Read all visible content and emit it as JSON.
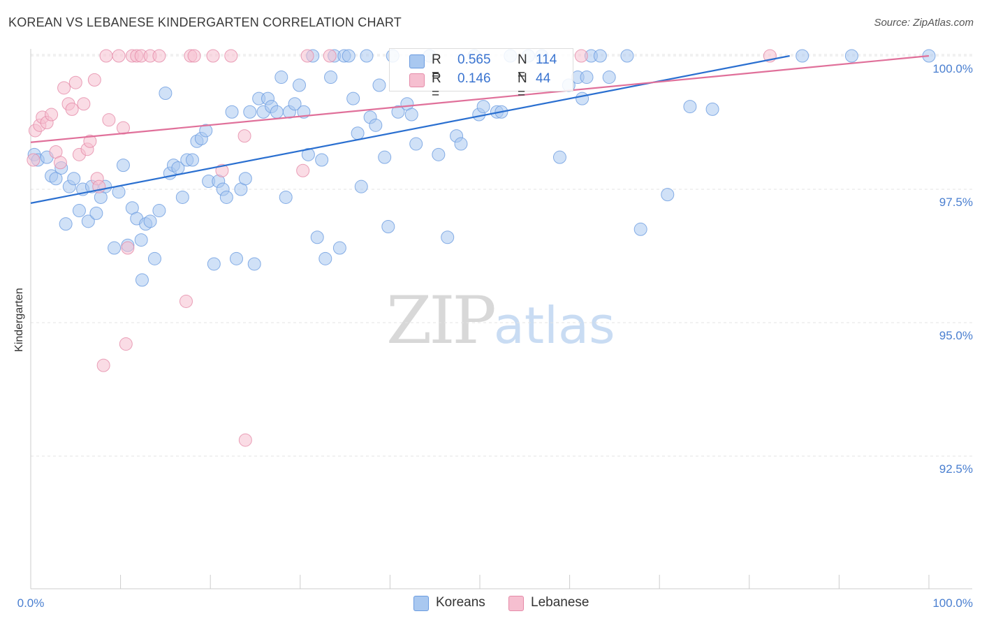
{
  "title": "KOREAN VS LEBANESE KINDERGARTEN CORRELATION CHART",
  "source": "Source: ZipAtlas.com",
  "watermark": {
    "zip": "ZIP",
    "atlas": "atlas"
  },
  "legend": {
    "rows": [
      {
        "r_label": "R =",
        "r_value": "0.565",
        "n_label": "N =",
        "n_value": "114",
        "color": "#a9c8f0",
        "border": "#6a9be0"
      },
      {
        "r_label": "R =",
        "r_value": "0.146",
        "n_label": "N =",
        "n_value": "44",
        "color": "#f6bfd0",
        "border": "#e58aa8"
      }
    ]
  },
  "bottom_legend": [
    {
      "label": "Koreans",
      "color": "#a9c8f0",
      "border": "#6a9be0"
    },
    {
      "label": "Lebanese",
      "color": "#f6bfd0",
      "border": "#e58aa8"
    }
  ],
  "chart_data": {
    "type": "scatter",
    "title": "KOREAN VS LEBANESE KINDERGARTEN CORRELATION CHART",
    "xlabel": "",
    "ylabel": "Kindergarten",
    "xlim": [
      0,
      100
    ],
    "ylim": [
      90.0,
      100.4
    ],
    "x_tick_labels": [
      "0.0%",
      "100.0%"
    ],
    "y_ticks": [
      92.5,
      95.0,
      97.5,
      100.0
    ],
    "y_tick_labels": [
      "92.5%",
      "95.0%",
      "97.5%",
      "100.0%"
    ],
    "grid": true,
    "series": [
      {
        "name": "Koreans",
        "color": "#6a9be0",
        "fill": "#a9c8f0",
        "trend": {
          "x": [
            0,
            84.5
          ],
          "y": [
            97.24,
            100.0
          ],
          "color": "#2a6fd0"
        },
        "points": [
          [
            0.4,
            98.15
          ],
          [
            0.8,
            98.05
          ],
          [
            1.8,
            98.1
          ],
          [
            2.3,
            97.75
          ],
          [
            2.8,
            97.7
          ],
          [
            3.4,
            97.9
          ],
          [
            3.9,
            96.85
          ],
          [
            4.3,
            97.55
          ],
          [
            4.8,
            97.7
          ],
          [
            5.4,
            97.1
          ],
          [
            5.8,
            97.5
          ],
          [
            6.4,
            96.9
          ],
          [
            6.8,
            97.55
          ],
          [
            7.3,
            97.05
          ],
          [
            7.8,
            97.35
          ],
          [
            8.3,
            97.55
          ],
          [
            9.3,
            96.4
          ],
          [
            9.8,
            97.45
          ],
          [
            10.3,
            97.95
          ],
          [
            10.8,
            96.45
          ],
          [
            11.3,
            97.15
          ],
          [
            11.8,
            96.95
          ],
          [
            12.3,
            96.55
          ],
          [
            12.4,
            95.8
          ],
          [
            12.8,
            96.85
          ],
          [
            13.3,
            96.9
          ],
          [
            13.8,
            96.2
          ],
          [
            14.3,
            97.1
          ],
          [
            15.0,
            99.3
          ],
          [
            15.5,
            97.8
          ],
          [
            15.9,
            97.95
          ],
          [
            16.4,
            97.9
          ],
          [
            16.9,
            97.35
          ],
          [
            17.4,
            98.05
          ],
          [
            18.0,
            98.05
          ],
          [
            18.5,
            98.4
          ],
          [
            19.0,
            98.45
          ],
          [
            19.5,
            98.6
          ],
          [
            19.8,
            97.65
          ],
          [
            20.4,
            96.1
          ],
          [
            20.9,
            97.65
          ],
          [
            21.4,
            97.5
          ],
          [
            21.8,
            97.35
          ],
          [
            22.4,
            98.95
          ],
          [
            22.9,
            96.2
          ],
          [
            23.4,
            97.5
          ],
          [
            23.9,
            97.7
          ],
          [
            24.4,
            98.95
          ],
          [
            24.9,
            96.1
          ],
          [
            25.4,
            99.2
          ],
          [
            25.9,
            98.95
          ],
          [
            26.4,
            99.2
          ],
          [
            26.8,
            99.05
          ],
          [
            27.4,
            98.95
          ],
          [
            27.9,
            99.6
          ],
          [
            28.4,
            97.35
          ],
          [
            28.8,
            98.95
          ],
          [
            29.4,
            99.1
          ],
          [
            29.9,
            99.45
          ],
          [
            30.4,
            98.95
          ],
          [
            30.9,
            98.15
          ],
          [
            31.4,
            100.0
          ],
          [
            31.9,
            96.6
          ],
          [
            32.4,
            98.05
          ],
          [
            32.8,
            96.2
          ],
          [
            33.4,
            99.6
          ],
          [
            33.8,
            100.0
          ],
          [
            34.4,
            96.4
          ],
          [
            34.9,
            100.0
          ],
          [
            35.4,
            100.0
          ],
          [
            35.9,
            99.2
          ],
          [
            36.4,
            98.55
          ],
          [
            36.8,
            97.55
          ],
          [
            37.4,
            100.0
          ],
          [
            37.8,
            98.85
          ],
          [
            38.4,
            98.7
          ],
          [
            38.8,
            99.45
          ],
          [
            39.4,
            98.1
          ],
          [
            39.8,
            96.8
          ],
          [
            40.3,
            100.0
          ],
          [
            40.9,
            98.95
          ],
          [
            41.9,
            99.1
          ],
          [
            42.4,
            98.9
          ],
          [
            42.9,
            98.35
          ],
          [
            44.4,
            100.0
          ],
          [
            45.4,
            98.15
          ],
          [
            46.4,
            96.6
          ],
          [
            47.4,
            98.5
          ],
          [
            47.9,
            98.35
          ],
          [
            49.4,
            100.0
          ],
          [
            49.9,
            98.9
          ],
          [
            50.4,
            99.05
          ],
          [
            51.9,
            98.95
          ],
          [
            52.4,
            98.95
          ],
          [
            53.4,
            100.0
          ],
          [
            55.4,
            100.0
          ],
          [
            56.9,
            100.0
          ],
          [
            58.9,
            98.1
          ],
          [
            59.9,
            99.45
          ],
          [
            60.9,
            99.6
          ],
          [
            61.4,
            99.2
          ],
          [
            61.9,
            99.6
          ],
          [
            62.4,
            100.0
          ],
          [
            63.4,
            100.0
          ],
          [
            64.4,
            99.6
          ],
          [
            66.4,
            100.0
          ],
          [
            67.9,
            96.75
          ],
          [
            70.9,
            97.4
          ],
          [
            73.4,
            99.05
          ],
          [
            75.9,
            99.0
          ],
          [
            85.9,
            100.0
          ],
          [
            91.4,
            100.0
          ],
          [
            100,
            100.0
          ]
        ]
      },
      {
        "name": "Lebanese",
        "color": "#e58aa8",
        "fill": "#f6bfd0",
        "trend": {
          "x": [
            0,
            100
          ],
          "y": [
            98.38,
            100.0
          ],
          "color": "#e0709a"
        },
        "points": [
          [
            0.3,
            98.05
          ],
          [
            0.5,
            98.6
          ],
          [
            1.0,
            98.7
          ],
          [
            1.3,
            98.85
          ],
          [
            1.8,
            98.75
          ],
          [
            2.3,
            98.9
          ],
          [
            2.8,
            98.2
          ],
          [
            3.3,
            98.0
          ],
          [
            3.7,
            99.4
          ],
          [
            4.2,
            99.1
          ],
          [
            4.6,
            99.0
          ],
          [
            5.0,
            99.5
          ],
          [
            5.4,
            98.15
          ],
          [
            5.9,
            99.1
          ],
          [
            6.3,
            98.25
          ],
          [
            6.6,
            98.4
          ],
          [
            7.1,
            99.55
          ],
          [
            7.4,
            97.7
          ],
          [
            7.6,
            97.55
          ],
          [
            8.1,
            94.2
          ],
          [
            8.4,
            100.0
          ],
          [
            8.7,
            98.8
          ],
          [
            9.8,
            100.0
          ],
          [
            10.3,
            98.65
          ],
          [
            10.6,
            94.6
          ],
          [
            10.8,
            96.4
          ],
          [
            11.3,
            100.0
          ],
          [
            11.8,
            100.0
          ],
          [
            12.3,
            100.0
          ],
          [
            13.3,
            100.0
          ],
          [
            14.3,
            100.0
          ],
          [
            17.3,
            95.4
          ],
          [
            17.8,
            100.0
          ],
          [
            18.2,
            100.0
          ],
          [
            20.3,
            100.0
          ],
          [
            21.3,
            97.85
          ],
          [
            22.3,
            100.0
          ],
          [
            23.8,
            98.5
          ],
          [
            23.9,
            92.8
          ],
          [
            30.3,
            97.85
          ],
          [
            30.8,
            100.0
          ],
          [
            33.3,
            100.0
          ],
          [
            61.3,
            100.0
          ],
          [
            82.3,
            100.0
          ]
        ]
      }
    ]
  }
}
